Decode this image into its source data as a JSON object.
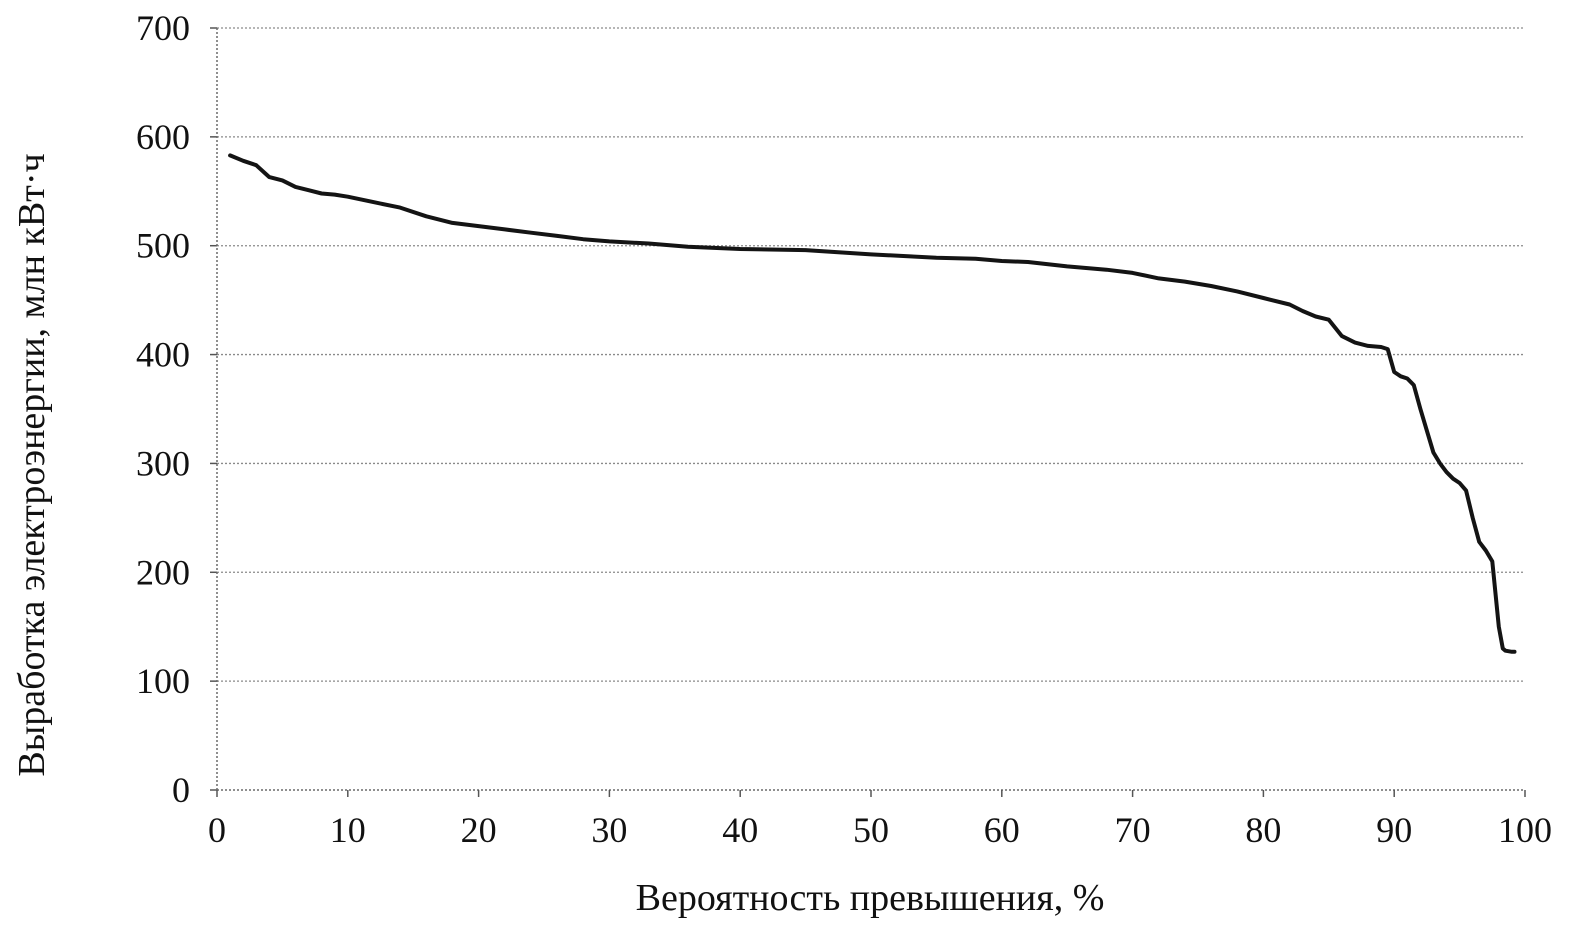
{
  "chart_data": {
    "type": "line",
    "title": "",
    "xlabel": "Вероятность превышения, %",
    "ylabel": "Выработка электроэнергии, млн кВт·ч",
    "xlim": [
      0,
      100
    ],
    "ylim": [
      0,
      700
    ],
    "x_ticks": [
      "0",
      "10",
      "20",
      "30",
      "40",
      "50",
      "60",
      "70",
      "80",
      "90",
      "100"
    ],
    "y_ticks": [
      "0",
      "100",
      "200",
      "300",
      "400",
      "500",
      "600",
      "700"
    ],
    "grid": "horizontal",
    "legend": "none",
    "line_color": "#141414",
    "series": [
      {
        "x": [
          1,
          2,
          3,
          4,
          5,
          6,
          7,
          8,
          9,
          10,
          12,
          14,
          16,
          18,
          20,
          22,
          24,
          26,
          28,
          30,
          33,
          36,
          40,
          45,
          50,
          55,
          58,
          60,
          62,
          65,
          68,
          70,
          72,
          74,
          76,
          78,
          80,
          82,
          83,
          84,
          85,
          86,
          87,
          88,
          89,
          89.5,
          90,
          90.5,
          91,
          91.5,
          92,
          92.5,
          93,
          93.5,
          94,
          94.5,
          95,
          95.5,
          96,
          96.5,
          97,
          97.5,
          98,
          98.3,
          98.5,
          99,
          99.2
        ],
        "y": [
          583,
          578,
          574,
          563,
          560,
          554,
          551,
          548,
          547,
          545,
          540,
          535,
          527,
          521,
          518,
          515,
          512,
          509,
          506,
          504,
          502,
          499,
          497,
          496,
          492,
          489,
          488,
          486,
          485,
          481,
          478,
          475,
          470,
          467,
          463,
          458,
          452,
          446,
          440,
          435,
          432,
          417,
          411,
          408,
          407,
          405,
          384,
          380,
          378,
          372,
          350,
          330,
          310,
          300,
          292,
          286,
          282,
          275,
          250,
          228,
          220,
          210,
          150,
          130,
          128,
          127,
          127
        ]
      }
    ]
  }
}
